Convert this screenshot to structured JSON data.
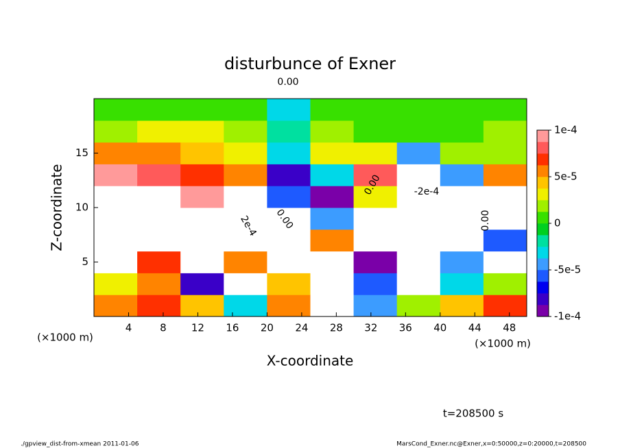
{
  "chart_data": {
    "type": "contourf",
    "title": "disturbunce of Exner",
    "x_label": "X-coordinate",
    "y_label": "Z-coordinate",
    "x_unit_left": "(×1000 m)",
    "x_unit_right": "(×1000 m)",
    "time_label": "t=208500 s",
    "footer_left": "./gpview_dist-from-xmean  2011-01-06",
    "footer_right": "MarsCond_Exner.nc@Exner,x=0:50000,z=0:20000,t=208500",
    "xlim": [
      0,
      50
    ],
    "ylim": [
      0,
      20
    ],
    "xticks": [
      4,
      8,
      12,
      16,
      20,
      24,
      28,
      32,
      36,
      40,
      44,
      48
    ],
    "yticks": [
      5,
      10,
      15
    ],
    "x": [
      2.5,
      7.5,
      12.5,
      17.5,
      22.5,
      27.5,
      32.5,
      37.5,
      42.5,
      47.5
    ],
    "z": [
      1,
      3,
      5,
      7,
      9,
      11,
      13,
      15,
      17,
      19
    ],
    "values": [
      [
        5e-05,
        7e-05,
        4e-05,
        -3e-05,
        6e-05,
        0.00013,
        -5e-05,
        2e-05,
        4e-05,
        7e-05
      ],
      [
        3e-05,
        6e-05,
        -8e-05,
        -0.00015,
        4e-05,
        0.00015,
        -6e-05,
        -0.0002,
        -3e-05,
        2e-05
      ],
      [
        0.00012,
        7e-05,
        0.00012,
        6e-05,
        0.00011,
        0.00015,
        -0.0001,
        -0.0003,
        -5e-05,
        -0.00012
      ],
      [
        0.00015,
        0.00014,
        0.00015,
        0.00015,
        0.00012,
        5e-05,
        -0.0002,
        -0.0004,
        -0.00015,
        -6e-05
      ],
      [
        0.00015,
        0.00015,
        0.00015,
        0.00015,
        0.00012,
        -5e-05,
        -0.0002,
        -0.0003,
        -0.00015,
        0.00012
      ],
      [
        0.00015,
        0.00012,
        9e-05,
        0.00012,
        -6e-05,
        -9e-05,
        3e-05,
        -0.0002,
        -0.00015,
        0.00012
      ],
      [
        9e-05,
        8e-05,
        7e-05,
        6e-05,
        -8e-05,
        -3e-05,
        8e-05,
        -0.00015,
        -5e-05,
        5e-05
      ],
      [
        5e-05,
        5e-05,
        4e-05,
        3e-05,
        -3e-05,
        3e-05,
        3e-05,
        -5e-05,
        2e-05,
        2e-05
      ],
      [
        2e-05,
        3e-05,
        3e-05,
        2e-05,
        -2e-05,
        2e-05,
        0,
        1e-05,
        1e-05,
        2e-05
      ],
      [
        1e-05,
        1e-05,
        1e-05,
        5e-06,
        -3e-05,
        1e-05,
        0,
        1e-05,
        0,
        1e-05
      ]
    ],
    "clim": [
      -0.0001,
      0.0001
    ],
    "cticks": [
      {
        "value": 0.0001,
        "label": "1e-4"
      },
      {
        "value": 5e-05,
        "label": "5e-5"
      },
      {
        "value": 0,
        "label": "0"
      },
      {
        "value": -5e-05,
        "label": "-5e-5"
      },
      {
        "value": -0.0001,
        "label": "-1e-4"
      }
    ],
    "colorscale": [
      "#7a00a8",
      "#3a00c8",
      "#0000f0",
      "#1e5aff",
      "#3c9cff",
      "#00d8e8",
      "#00e0a0",
      "#00d020",
      "#38e000",
      "#a0f000",
      "#f0f000",
      "#ffc400",
      "#ff8400",
      "#ff3000",
      "#ff5a5a",
      "#ff9a9a"
    ],
    "out_of_range_color": "#ffffff",
    "contour_labels": [
      "0.00",
      "0.00",
      "0.00",
      "0.00",
      "-2e-4",
      "2e-4"
    ]
  }
}
